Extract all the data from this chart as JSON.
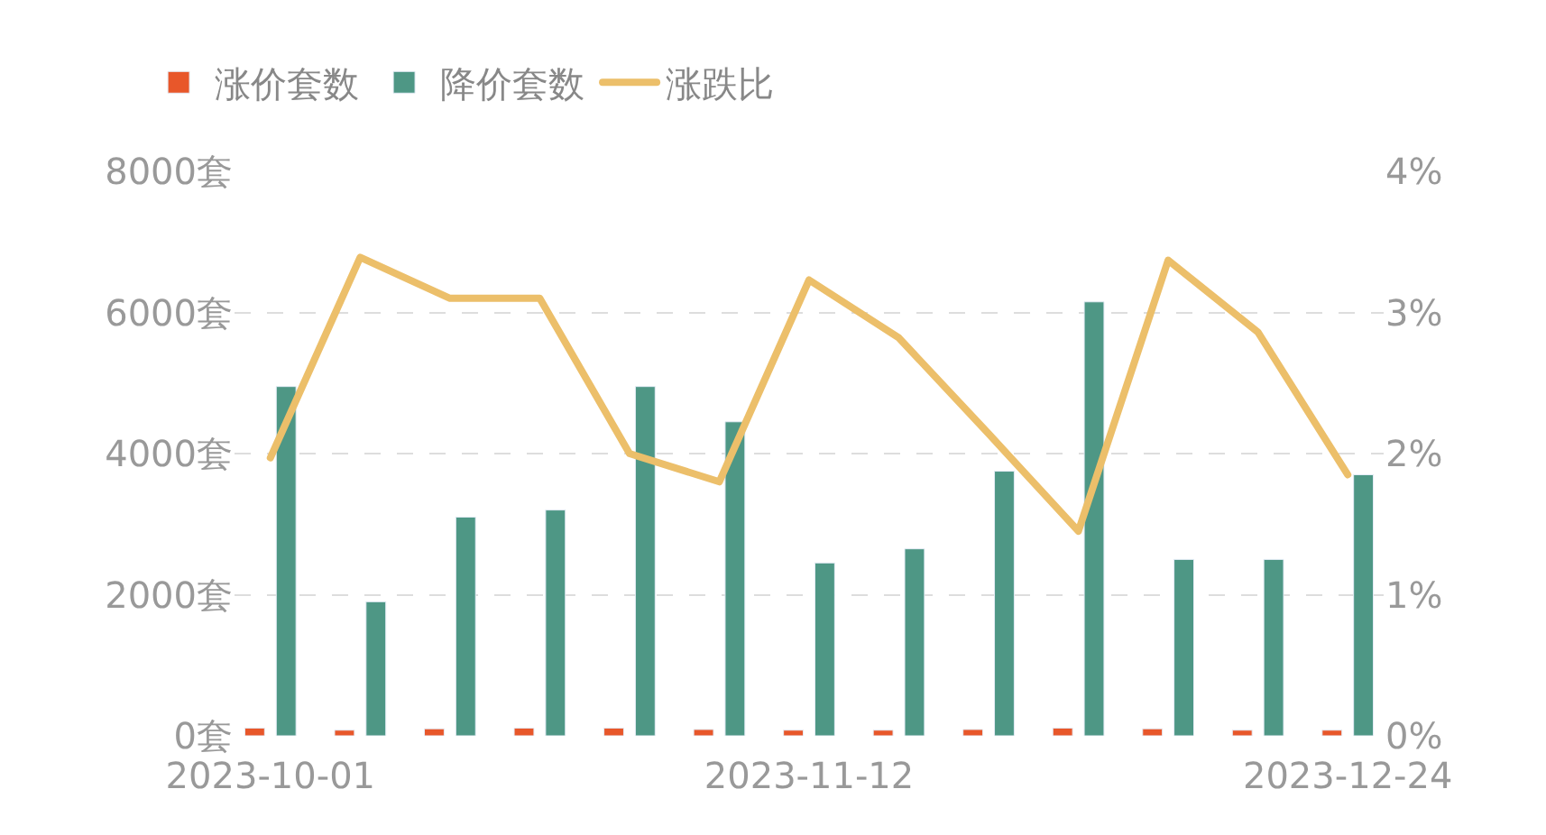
{
  "chart_data": {
    "type": "bar",
    "categories": [
      "2023-10-01",
      null,
      null,
      null,
      null,
      null,
      "2023-11-12",
      null,
      null,
      null,
      null,
      null,
      "2023-12-24"
    ],
    "series": [
      {
        "name": "涨价套数",
        "color": "#e8572a",
        "values": [
          110,
          80,
          100,
          110,
          110,
          90,
          80,
          80,
          90,
          110,
          100,
          80,
          80
        ]
      },
      {
        "name": "降价套数",
        "color": "#4e9785",
        "values": [
          4950,
          1900,
          3100,
          3200,
          4950,
          4450,
          2450,
          2650,
          3750,
          6150,
          2500,
          2500,
          3700
        ]
      },
      {
        "name": "涨跌比",
        "type": "line",
        "axis": "y2",
        "color": "#ecbf6a",
        "values": [
          1.97,
          3.39,
          3.1,
          3.1,
          2.0,
          1.8,
          3.23,
          2.82,
          2.14,
          1.45,
          3.37,
          2.86,
          1.85
        ]
      }
    ],
    "ylim": [
      0,
      8000
    ],
    "yticks": [
      {
        "value": 0,
        "label": "0套"
      },
      {
        "value": 2000,
        "label": "2000套"
      },
      {
        "value": 4000,
        "label": "4000套"
      },
      {
        "value": 6000,
        "label": "6000套"
      },
      {
        "value": 8000,
        "label": "8000套"
      }
    ],
    "y2lim": [
      0,
      4
    ],
    "y2ticks": [
      {
        "value": 0,
        "label": "0%"
      },
      {
        "value": 1,
        "label": "1%"
      },
      {
        "value": 2,
        "label": "2%"
      },
      {
        "value": 3,
        "label": "3%"
      },
      {
        "value": 4,
        "label": "4%"
      }
    ],
    "grid": "y",
    "legend": "top left",
    "line_style": "solid",
    "marker": "none"
  }
}
